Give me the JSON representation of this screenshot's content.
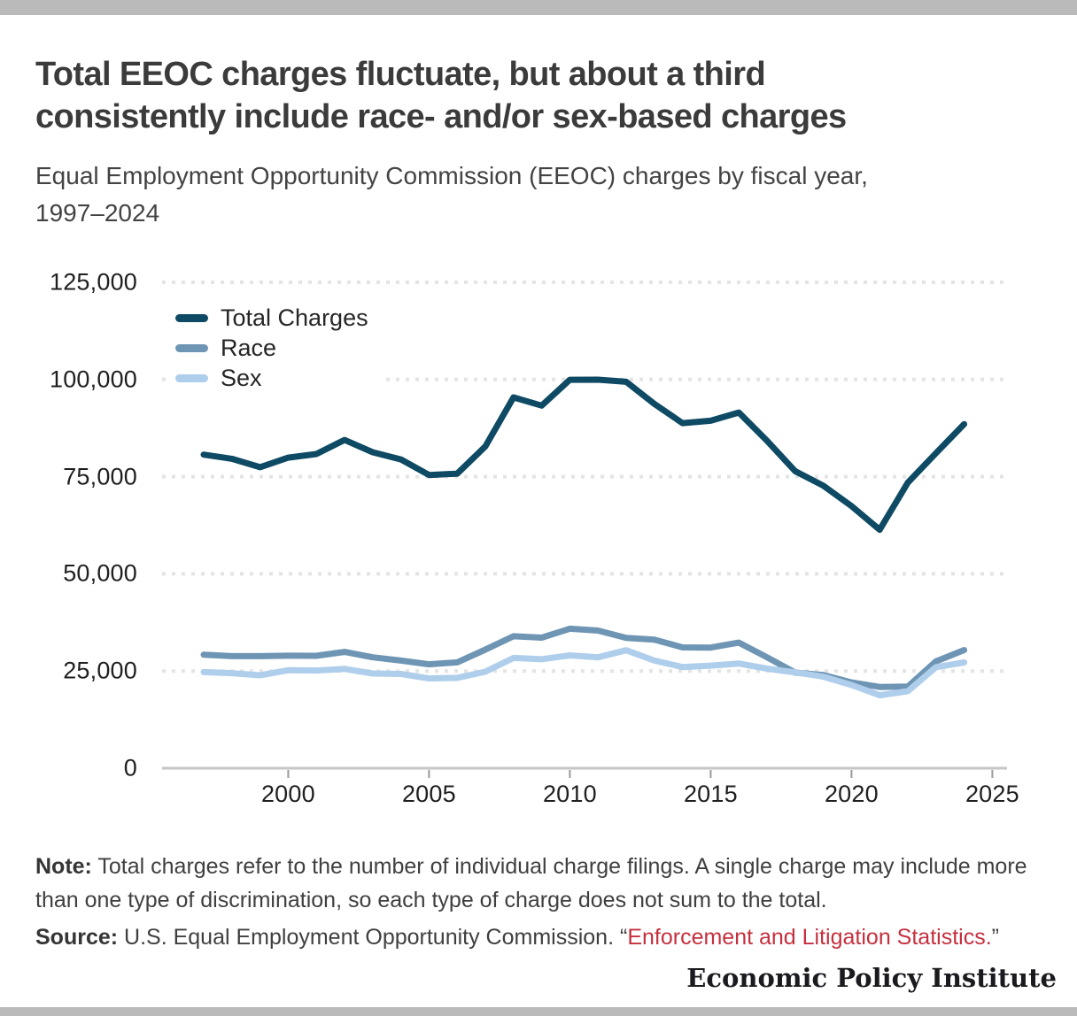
{
  "page": {
    "title_lines": [
      "Total EEOC charges fluctuate, but about a third",
      "consistently include race- and/or sex-based charges"
    ],
    "subtitle_lines": [
      "Equal Employment Opportunity Commission (EEOC) charges by fiscal year,",
      "1997–2024"
    ],
    "note": {
      "label": "Note:",
      "text": " Total charges refer to the number of individual charge filings. A single charge may include more than one type of discrimination, so each type of charge does not sum to the total."
    },
    "source": {
      "label": "Source:",
      "text": " U.S. Equal Employment Opportunity Commission. ",
      "open_quote": "“",
      "link_text": "Enforcement and Litigation Statistics.",
      "close_quote": "”"
    },
    "footer_brand": "Economic Policy Institute",
    "colors": {
      "top_bottom_bar_gray": "#bababa",
      "title_text": "#3b3b3b",
      "link_red": "#c5303e",
      "gridline": "#e4e4e4",
      "axis_line": "#c6c6c6"
    }
  },
  "chart_data": {
    "type": "line",
    "title": "Total EEOC charges fluctuate, but about a third consistently include race- and/or sex-based charges",
    "subtitle": "Equal Employment Opportunity Commission (EEOC) charges by fiscal year, 1997–2024",
    "xlabel": "",
    "ylabel": "",
    "xlim": [
      1996.8,
      2025.2
    ],
    "ylim": [
      0,
      125000
    ],
    "grid": "horizontal-dotted",
    "legend_position": "top-left-inside",
    "x": [
      1997,
      1998,
      1999,
      2000,
      2001,
      2002,
      2003,
      2004,
      2005,
      2006,
      2007,
      2008,
      2009,
      2010,
      2011,
      2012,
      2013,
      2014,
      2015,
      2016,
      2017,
      2018,
      2019,
      2020,
      2021,
      2022,
      2023,
      2024
    ],
    "series": [
      {
        "name": "Total Charges",
        "color": "#0e4a64",
        "values": [
          80680,
          79591,
          77444,
          79896,
          80840,
          84442,
          81293,
          79432,
          75428,
          75768,
          82792,
          95402,
          93277,
          99922,
          99947,
          99412,
          93727,
          88778,
          89385,
          91503,
          84254,
          76418,
          72675,
          67448,
          61331,
          73485,
          81055,
          88531
        ]
      },
      {
        "name": "Race",
        "color": "#6e95b4",
        "values": [
          29199,
          28820,
          28819,
          28945,
          28912,
          29910,
          28526,
          27696,
          26740,
          27238,
          30510,
          33937,
          33579,
          35890,
          35395,
          33512,
          33068,
          31073,
          31027,
          32309,
          28528,
          24600,
          23976,
          22064,
          20908,
          20992,
          27500,
          30400
        ]
      },
      {
        "name": "Sex",
        "color": "#aeceeb",
        "values": [
          24728,
          24454,
          23907,
          25194,
          25140,
          25536,
          24362,
          24249,
          23094,
          23247,
          24826,
          28372,
          28028,
          29029,
          28534,
          30356,
          27687,
          26027,
          26396,
          26934,
          25605,
          24655,
          23532,
          21398,
          18762,
          19805,
          26000,
          27200
        ]
      }
    ],
    "yticks": [
      {
        "value": 125000,
        "label": "125,000"
      },
      {
        "value": 100000,
        "label": "100,000"
      },
      {
        "value": 75000,
        "label": "75,000"
      },
      {
        "value": 50000,
        "label": "50,000"
      },
      {
        "value": 25000,
        "label": "25,000"
      },
      {
        "value": 0,
        "label": "0"
      }
    ],
    "xticks": [
      {
        "value": 2000,
        "label": "2000"
      },
      {
        "value": 2005,
        "label": "2005"
      },
      {
        "value": 2010,
        "label": "2010"
      },
      {
        "value": 2015,
        "label": "2015"
      },
      {
        "value": 2020,
        "label": "2020"
      },
      {
        "value": 2025,
        "label": "2025"
      }
    ]
  }
}
